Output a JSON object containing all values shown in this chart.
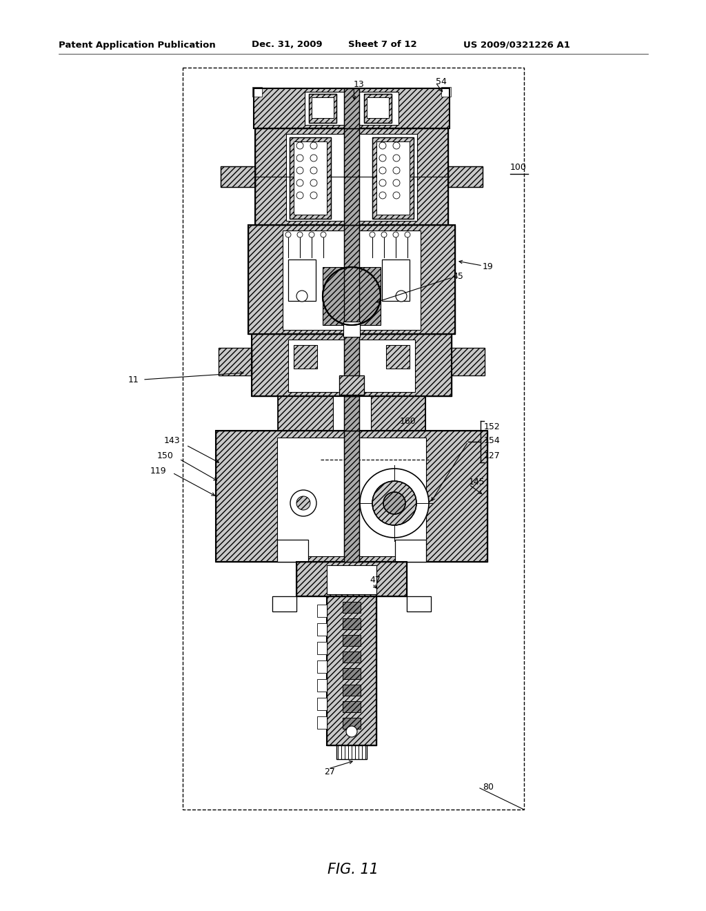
{
  "bg_color": "#ffffff",
  "line_color": "#000000",
  "header_left": "Patent Application Publication",
  "header_mid1": "Dec. 31, 2009",
  "header_mid2": "Sheet 7 of 12",
  "header_right": "US 2009/0321226 A1",
  "fig_caption": "FIG. 11",
  "hatch_fc": "#c8c8c8",
  "hatch_pattern": "////",
  "shaft_fc": "#aaaaaa"
}
